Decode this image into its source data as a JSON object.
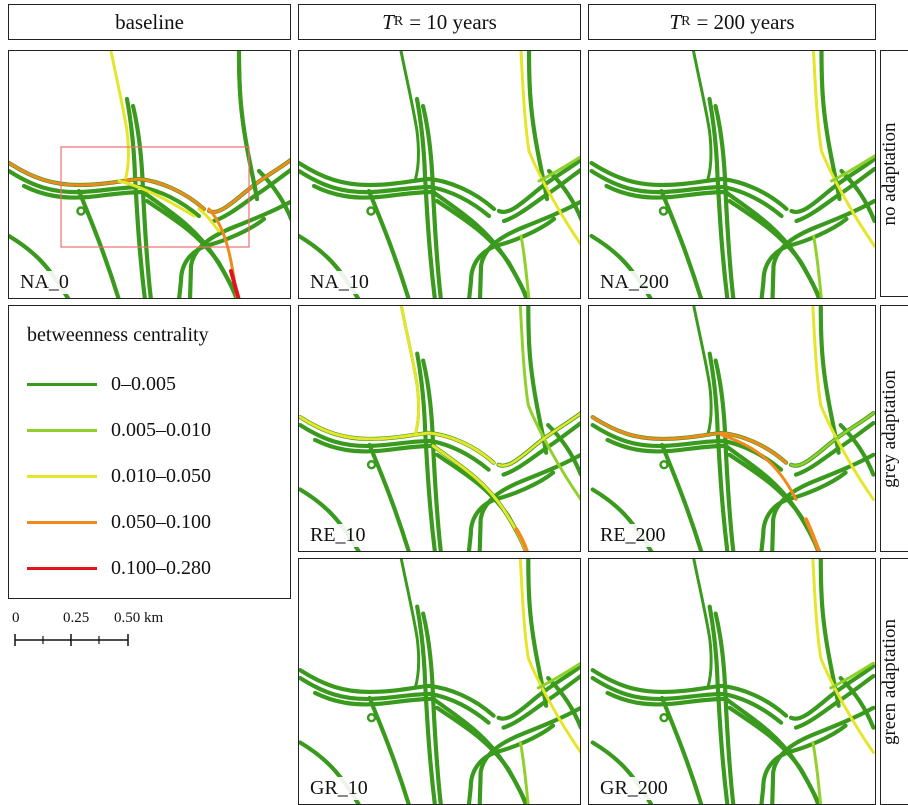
{
  "columns": {
    "baseline": "baseline",
    "tr10": {
      "italic": "T",
      "sub": "R",
      "rest": "= 10 years"
    },
    "tr200": {
      "italic": "T",
      "sub": "R",
      "rest": "= 200 years"
    }
  },
  "rows": {
    "no": "no adaptation",
    "grey": "grey adaptation",
    "green": "green adaptation"
  },
  "panels": {
    "na0": "NA_0",
    "na10": "NA_10",
    "na200": "NA_200",
    "re10": "RE_10",
    "re200": "RE_200",
    "gr10": "GR_10",
    "gr200": "GR_200"
  },
  "legend": {
    "title": "betweenness centrality",
    "items": [
      {
        "label": "0–0.005",
        "color": "#3a9a1e"
      },
      {
        "label": "0.005–0.010",
        "color": "#8fd12a"
      },
      {
        "label": "0.010–0.050",
        "color": "#e5e52a"
      },
      {
        "label": "0.050–0.100",
        "color": "#f08a1c"
      },
      {
        "label": "0.100–0.280",
        "color": "#e0141a"
      }
    ]
  },
  "scale_bar": {
    "ticks": [
      "0",
      "0.25",
      "0.50 km"
    ]
  },
  "colors": {
    "base": "#3a9a1e",
    "light": "#8fd12a",
    "yellow": "#e5e52a",
    "orange": "#f08a1c",
    "red": "#e0141a",
    "highlight_box": "#f07070"
  }
}
